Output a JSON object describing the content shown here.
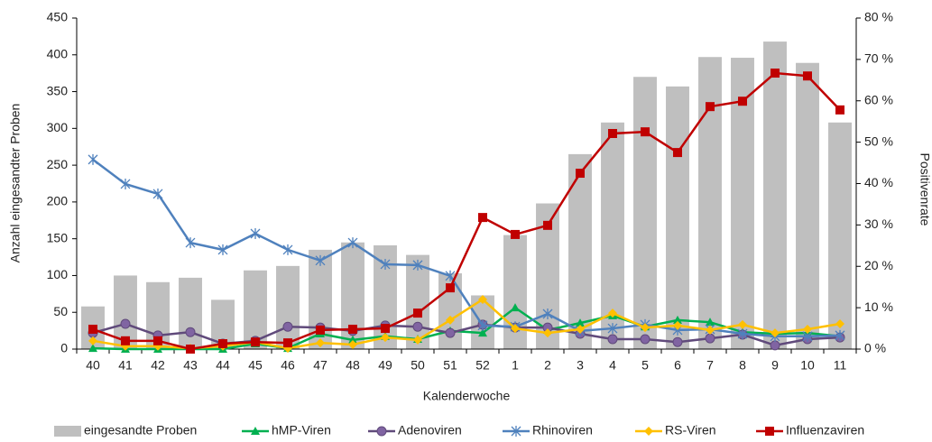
{
  "chart_data": {
    "type": "bar",
    "categories": [
      "40",
      "41",
      "42",
      "43",
      "44",
      "45",
      "46",
      "47",
      "48",
      "49",
      "50",
      "51",
      "52",
      "1",
      "2",
      "3",
      "4",
      "5",
      "6",
      "7",
      "8",
      "9",
      "10",
      "11"
    ],
    "x_label": "Kalenderwoche",
    "y_label": "Anzahl eingesandter Proben",
    "y2_label": "Positivenrate",
    "ylim": [
      0,
      450
    ],
    "yticks": [
      0,
      50,
      100,
      150,
      200,
      250,
      300,
      350,
      400,
      450
    ],
    "y2lim": [
      0,
      80
    ],
    "y2ticks": [
      {
        "value": 0,
        "label": "0 %"
      },
      {
        "value": 10,
        "label": "10 %"
      },
      {
        "value": 20,
        "label": "20 %"
      },
      {
        "value": 30,
        "label": "30 %"
      },
      {
        "value": 40,
        "label": "40 %"
      },
      {
        "value": 50,
        "label": "50 %"
      },
      {
        "value": 60,
        "label": "60 %"
      },
      {
        "value": 70,
        "label": "70 %"
      },
      {
        "value": 80,
        "label": "80 %"
      }
    ],
    "legend": "bottom",
    "series": [
      {
        "name": "eingesandte Proben",
        "type": "bar",
        "color": "#bfbfbf",
        "values": [
          58,
          100,
          91,
          97,
          67,
          107,
          113,
          135,
          145,
          141,
          128,
          103,
          73,
          155,
          198,
          265,
          308,
          370,
          357,
          397,
          396,
          418,
          389,
          308
        ]
      },
      {
        "name": "hMP-Viren",
        "type": "line",
        "axis": "y2",
        "color": "#00b050",
        "marker": "triangle",
        "values": [
          0.2,
          0,
          0,
          0,
          0,
          1.3,
          0.2,
          3.7,
          2.2,
          3.1,
          2.4,
          4.4,
          3.9,
          10,
          4.6,
          6.3,
          8.1,
          5.4,
          7,
          6.5,
          4.1,
          3.7,
          3.9,
          3.1
        ]
      },
      {
        "name": "Adenoviren",
        "type": "line",
        "axis": "y2",
        "color": "#604a7b",
        "marker": "circle",
        "values": [
          3.9,
          6.1,
          3.3,
          4.1,
          1.3,
          2,
          5.4,
          5.2,
          4.4,
          5.7,
          5.4,
          3.9,
          5.9,
          5.2,
          5.2,
          3.7,
          2.4,
          2.4,
          1.7,
          2.6,
          3.5,
          0.9,
          2.4,
          2.8
        ]
      },
      {
        "name": "Rhinoviren",
        "type": "line",
        "axis": "y2",
        "color": "#4f81bd",
        "marker": "star",
        "values": [
          45.8,
          39.9,
          37.5,
          25.7,
          24,
          27.9,
          24,
          21.4,
          25.7,
          20.5,
          20.3,
          17.7,
          5.7,
          5.4,
          8.5,
          4.4,
          5,
          5.9,
          4.6,
          4.8,
          3.7,
          3.1,
          3.1,
          3.3
        ]
      },
      {
        "name": "RS-Viren",
        "type": "line",
        "axis": "y2",
        "color": "#ffc000",
        "marker": "diamond",
        "values": [
          2,
          0.7,
          0.7,
          0.2,
          0.7,
          1.7,
          0.2,
          1.5,
          1.1,
          2.8,
          2.2,
          7,
          12,
          5,
          3.9,
          4.8,
          8.7,
          5.2,
          5.7,
          4.6,
          5.9,
          3.9,
          4.8,
          6.1
        ]
      },
      {
        "name": "Influenzaviren",
        "type": "line",
        "axis": "y2",
        "color": "#c00000",
        "marker": "square",
        "values": [
          4.8,
          2,
          2,
          0,
          1.3,
          1.7,
          1.5,
          4.6,
          4.8,
          5,
          8.7,
          14.8,
          31.8,
          27.7,
          29.9,
          42.5,
          52.1,
          52.5,
          47.5,
          58.6,
          59.9,
          66.7,
          66,
          57.8
        ]
      }
    ]
  }
}
